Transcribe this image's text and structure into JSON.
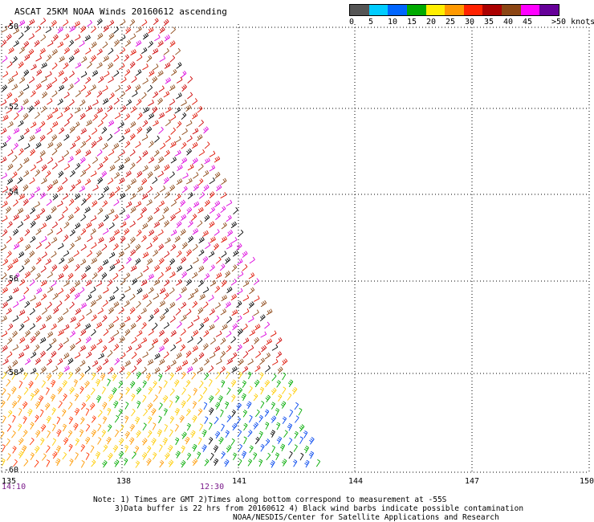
{
  "title": "ASCAT 25KM NOAA Winds 20160612 ascending",
  "legend": {
    "colors": [
      "#555555",
      "#00ccff",
      "#0066ff",
      "#00aa00",
      "#ffee00",
      "#ff9900",
      "#ff2200",
      "#aa0000",
      "#8b4513",
      "#ff00ff",
      "#660099"
    ],
    "labels": [
      "0",
      "5",
      "10",
      "15",
      "20",
      "25",
      "30",
      "35",
      "40",
      "45",
      ">50 knots"
    ]
  },
  "lat_labels": [
    "-50",
    "-52",
    "-54",
    "-56",
    "-58",
    "-60"
  ],
  "lon_labels": [
    "135",
    "138",
    "141",
    "144",
    "147",
    "150"
  ],
  "time_labels": [
    "14:10",
    "12:30"
  ],
  "note": {
    "line1": "Note: 1) Times are GMT 2)Times along bottom correspond to measurement at -55S",
    "line2": "3)Data buffer is 22 hrs from 20160612 4) Black wind barbs indicate possible contamination",
    "line3": "NOAA/NESDIS/Center for Satellite Applications and Research"
  }
}
